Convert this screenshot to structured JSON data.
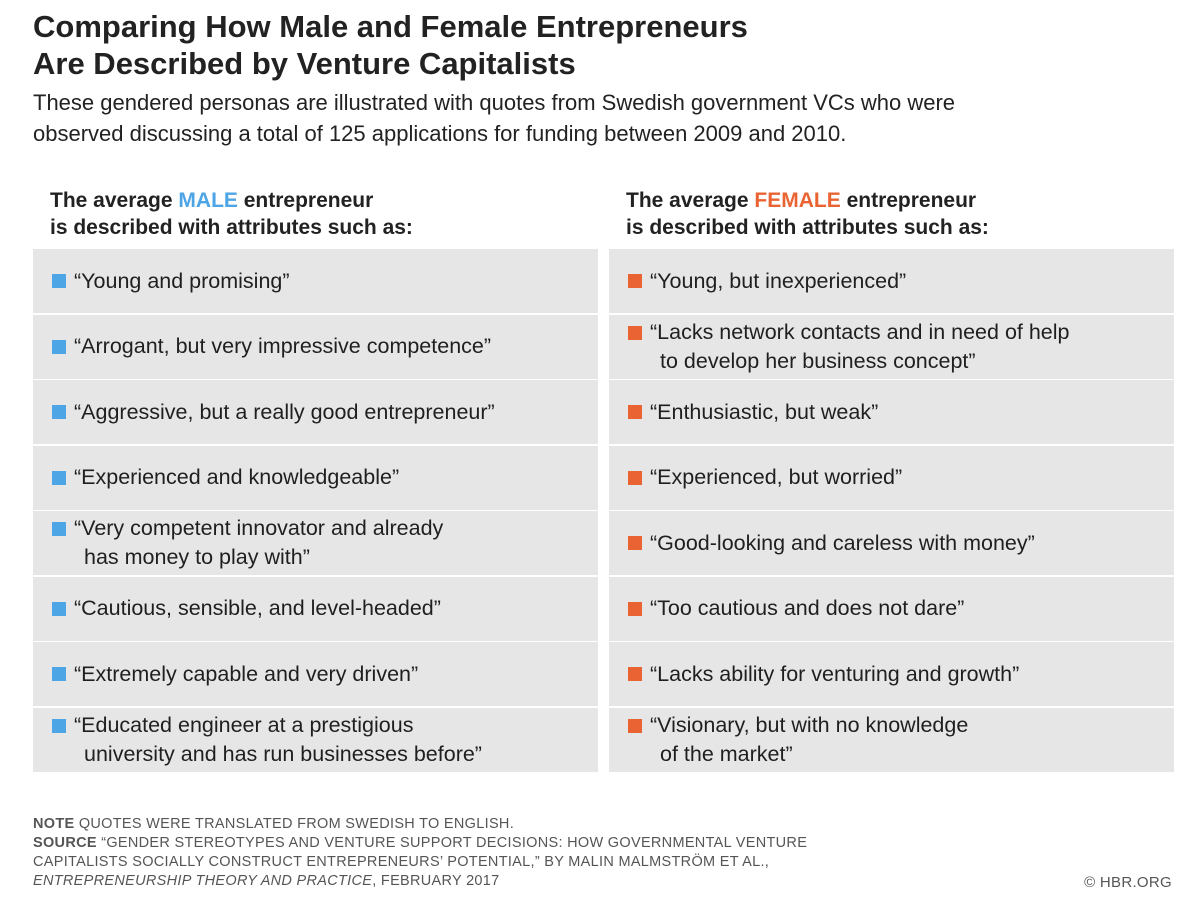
{
  "title": {
    "line1": "Comparing How Male and Female Entrepreneurs",
    "line2": "Are Described by Venture Capitalists"
  },
  "subtitle": {
    "line1": "These gendered personas are illustrated with quotes from Swedish government VCs who were",
    "line2": "observed discussing a total of 125 applications for funding between 2009 and 2010."
  },
  "colors": {
    "male": "#4ea5e5",
    "female": "#ea6433",
    "row_bg": "#e6e6e6"
  },
  "male": {
    "heading_pre": "The average ",
    "heading_keyword": "MALE",
    "heading_post": " entrepreneur",
    "heading_line2": "is described with attributes such as:",
    "quotes": [
      {
        "l1": "“Young and promising”",
        "l2": ""
      },
      {
        "l1": "“Arrogant, but very impressive competence”",
        "l2": ""
      },
      {
        "l1": "“Aggressive, but a really good entrepreneur”",
        "l2": ""
      },
      {
        "l1": "“Experienced and knowledgeable”",
        "l2": ""
      },
      {
        "l1": "“Very competent innovator and already",
        "l2": "has money to play with”"
      },
      {
        "l1": "“Cautious, sensible, and level-headed”",
        "l2": ""
      },
      {
        "l1": "“Extremely capable and very driven”",
        "l2": ""
      },
      {
        "l1": "“Educated engineer at a prestigious",
        "l2": "university and has run businesses before”"
      }
    ]
  },
  "female": {
    "heading_pre": "The average ",
    "heading_keyword": "FEMALE",
    "heading_post": " entrepreneur",
    "heading_line2": "is described with attributes such as:",
    "quotes": [
      {
        "l1": "“Young, but inexperienced”",
        "l2": ""
      },
      {
        "l1": "“Lacks network contacts and in need of help",
        "l2": "to develop her business concept”"
      },
      {
        "l1": "“Enthusiastic, but weak”",
        "l2": ""
      },
      {
        "l1": "“Experienced, but worried”",
        "l2": ""
      },
      {
        "l1": "“Good-looking and careless with money”",
        "l2": ""
      },
      {
        "l1": "“Too cautious and does not dare”",
        "l2": ""
      },
      {
        "l1": "“Lacks ability for venturing and growth”",
        "l2": ""
      },
      {
        "l1": "“Visionary, but with no knowledge",
        "l2": "of the market”"
      }
    ]
  },
  "footer": {
    "note_label": "NOTE",
    "note_text": "QUOTES WERE TRANSLATED FROM SWEDISH TO ENGLISH.",
    "source_label": "SOURCE",
    "source_line1": "“GENDER STEREOTYPES AND VENTURE SUPPORT DECISIONS: HOW GOVERNMENTAL VENTURE",
    "source_line2": "CAPITALISTS SOCIALLY CONSTRUCT ENTREPRENEURS’ POTENTIAL,” BY MALIN MALMSTRÖM ET AL.,",
    "source_journal": "ENTREPRENEURSHIP THEORY AND PRACTICE",
    "source_date": ", FEBRUARY 2017",
    "copyright": "© HBR.ORG"
  }
}
